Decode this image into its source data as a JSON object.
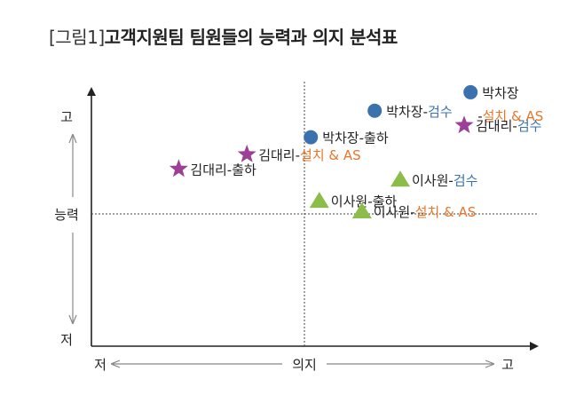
{
  "title": {
    "tag": "[그림1]",
    "text": "고객지원팀 팀원들의 능력과 의지 분석표"
  },
  "colors": {
    "circle": "#3a72ad",
    "star": "#9c3f98",
    "triangle": "#8cbc4a",
    "text": "#222222",
    "blue": "#3a72ad",
    "orange": "#e8752a",
    "axis": "#222222",
    "grey": "#888888"
  },
  "chart_data": {
    "type": "scatter",
    "xlabel": "의지",
    "ylabel": "능력",
    "x_axis": {
      "low": "저",
      "high": "고"
    },
    "y_axis": {
      "low": "저",
      "high": "고"
    },
    "points": [
      {
        "marker": "circle",
        "x": 0.78,
        "y": 0.92,
        "name": "박차장",
        "task": "설치 & AS",
        "task_color": "orange",
        "task_below": true
      },
      {
        "marker": "circle",
        "x": 0.33,
        "y": 0.78,
        "name": "박차장",
        "task": "검수",
        "task_color": "blue"
      },
      {
        "marker": "star",
        "x": 0.75,
        "y": 0.67,
        "name": "김대리",
        "task": "검수",
        "task_color": "blue"
      },
      {
        "marker": "circle",
        "x": 0.03,
        "y": 0.58,
        "name": "박차장",
        "task": "출하",
        "task_color": "black"
      },
      {
        "marker": "star",
        "x": -0.27,
        "y": 0.45,
        "name": "김대리",
        "task": "설치 & AS",
        "task_color": "orange"
      },
      {
        "marker": "star",
        "x": -0.59,
        "y": 0.34,
        "name": "김대리",
        "task": "출하",
        "task_color": "black"
      },
      {
        "marker": "triangle",
        "x": 0.45,
        "y": 0.26,
        "name": "이사원",
        "task": "검수",
        "task_color": "blue"
      },
      {
        "marker": "triangle",
        "x": 0.07,
        "y": 0.1,
        "name": "이사원",
        "task": "출하",
        "task_color": "black"
      },
      {
        "marker": "triangle",
        "x": 0.27,
        "y": 0.02,
        "name": "이사원",
        "task": "설치 & AS",
        "task_color": "orange"
      }
    ]
  }
}
